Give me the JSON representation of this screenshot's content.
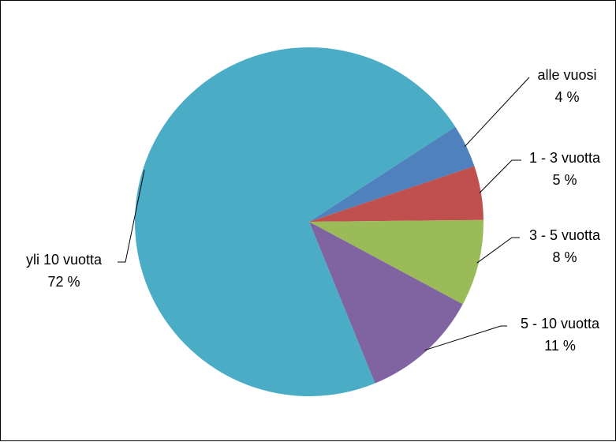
{
  "chart_data": {
    "type": "pie",
    "title": "",
    "start_angle_deg": 57,
    "slices": [
      {
        "label": "alle vuosi",
        "value": 4,
        "value_label": "4 %",
        "color": "#4f81bd"
      },
      {
        "label": "1 - 3 vuotta",
        "value": 5,
        "value_label": "5 %",
        "color": "#c0504d"
      },
      {
        "label": "3 - 5 vuotta",
        "value": 8,
        "value_label": "8 %",
        "color": "#9bbb59"
      },
      {
        "label": "5 - 10 vuotta",
        "value": 11,
        "value_label": "11 %",
        "color": "#8064a2"
      },
      {
        "label": "yli 10 vuotta",
        "value": 72,
        "value_label": "72 %",
        "color": "#4bacc6"
      }
    ],
    "legend": "none"
  }
}
